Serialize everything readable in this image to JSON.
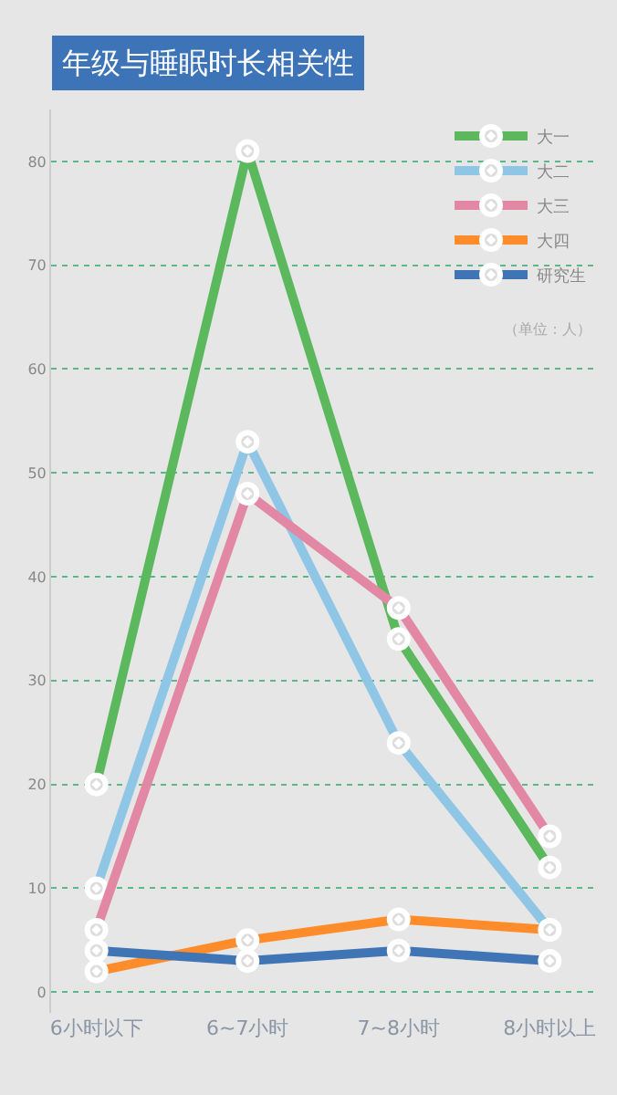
{
  "chart_data": {
    "type": "line",
    "title": "年级与睡眠时长相关性",
    "annotations": [
      "（单位：人）"
    ],
    "categories": [
      "6小时以下",
      "6~7小时",
      "7~8小时",
      "8小时以上"
    ],
    "series": [
      {
        "name": "大一",
        "color": "#5cb85c",
        "values": [
          20,
          81,
          34,
          12
        ]
      },
      {
        "name": "大二",
        "color": "#8fc6e6",
        "values": [
          10,
          53,
          24,
          6
        ]
      },
      {
        "name": "大三",
        "color": "#e287a4",
        "values": [
          6,
          48,
          37,
          15
        ]
      },
      {
        "name": "大四",
        "color": "#ff8c2a",
        "values": [
          2,
          5,
          7,
          6
        ]
      },
      {
        "name": "研究生",
        "color": "#3f74b5",
        "values": [
          4,
          3,
          4,
          3
        ]
      }
    ],
    "ylim": [
      -2,
      85
    ],
    "yticks": [
      0,
      10,
      20,
      30,
      40,
      50,
      60,
      70,
      80
    ],
    "grid": "y",
    "legend": "top right",
    "marker": "circle",
    "line_style": "solid"
  }
}
